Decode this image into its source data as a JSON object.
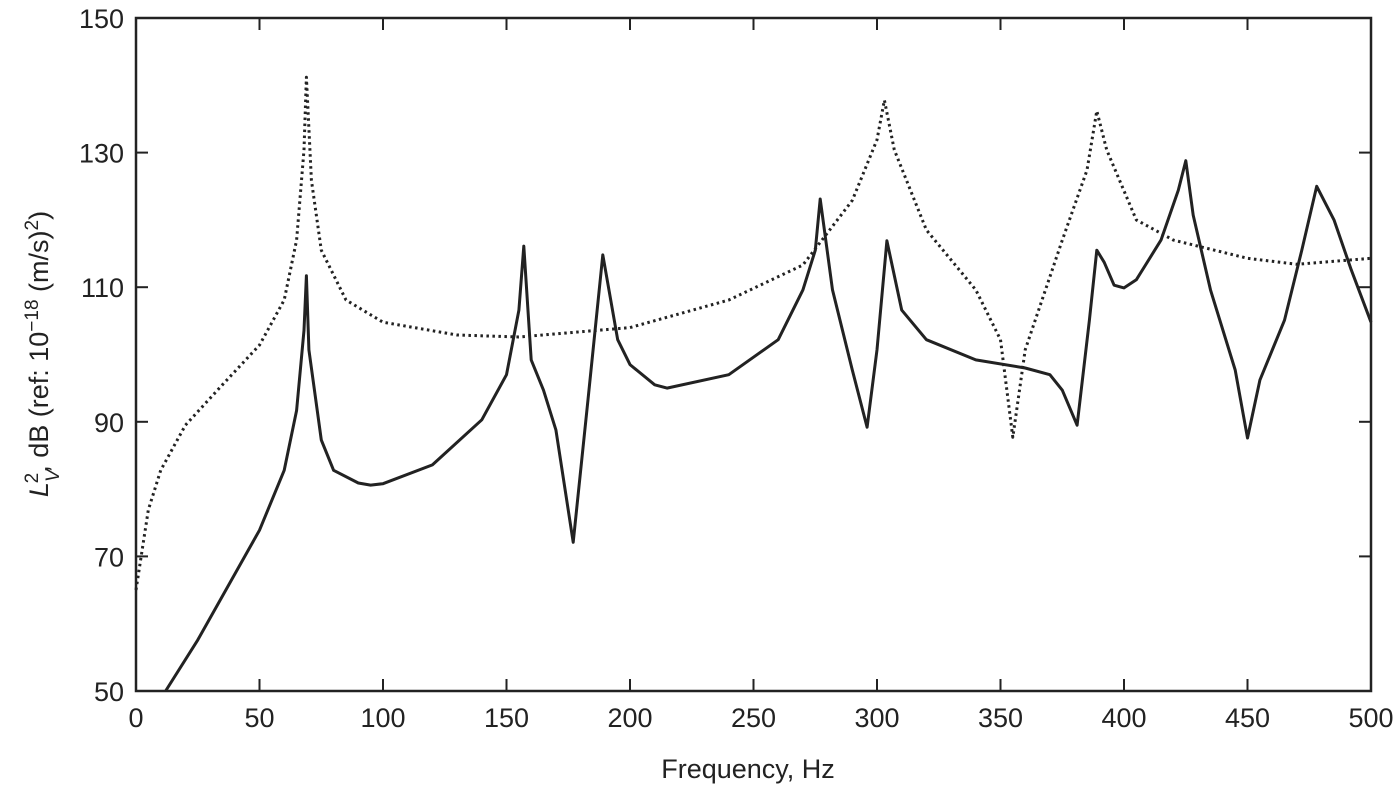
{
  "chart_data": {
    "type": "line",
    "xlabel": "Frequency, Hz",
    "ylabel": [
      "L",
      "V",
      "2",
      ", dB (ref: 10",
      "−18",
      " (m/s)",
      "2",
      ")"
    ],
    "xlim": [
      0,
      500
    ],
    "xticks": [
      0,
      50,
      100,
      150,
      200,
      250,
      300,
      350,
      400,
      450,
      500
    ],
    "ylim": [
      50,
      150
    ],
    "yticks": [
      50,
      70,
      90,
      110,
      130,
      150
    ],
    "grid": false,
    "series": [
      {
        "color": "#222222",
        "linestyle": "solid",
        "x": [
          12,
          25,
          50,
          60,
          65,
          68,
          69,
          70,
          75,
          80,
          90,
          95,
          100,
          120,
          140,
          150,
          155,
          157,
          160,
          165,
          170,
          177,
          183,
          189,
          195,
          200,
          210,
          215,
          240,
          260,
          270,
          275,
          277,
          282,
          290,
          296,
          300,
          304,
          310,
          320,
          340,
          360,
          370,
          375,
          381,
          386,
          389,
          392,
          396,
          400,
          405,
          415,
          422,
          425,
          428,
          435,
          445,
          450,
          455,
          465,
          472,
          478,
          485,
          492,
          500
        ],
        "values": [
          50,
          57.6,
          73.9,
          82.8,
          91.7,
          103.6,
          111.7,
          100.7,
          87.3,
          82.8,
          80.9,
          80.6,
          80.8,
          83.6,
          90.3,
          97,
          106.6,
          116.1,
          99.2,
          94.7,
          88.8,
          72.1,
          93.3,
          114.8,
          102.2,
          98.5,
          95.5,
          95,
          97,
          102.2,
          109.6,
          115.5,
          123.1,
          109.6,
          97.7,
          89.2,
          100.7,
          116.9,
          106.6,
          102.2,
          99.2,
          98,
          97,
          94.7,
          89.5,
          105.1,
          115.5,
          113.7,
          110.3,
          109.9,
          111.1,
          117,
          124.4,
          128.8,
          120.7,
          109.6,
          97.7,
          87.6,
          96.2,
          105.1,
          115.5,
          125,
          120,
          112.6,
          104.8
        ]
      },
      {
        "color": "#222222",
        "linestyle": "dotted",
        "x": [
          0,
          5,
          10,
          20,
          35,
          50,
          60,
          65,
          68,
          69,
          71,
          75,
          85,
          100,
          130,
          155,
          200,
          240,
          270,
          290,
          300,
          303,
          307,
          320,
          340,
          350,
          355,
          360,
          375,
          385,
          389,
          393,
          405,
          420,
          450,
          470,
          500
        ],
        "values": [
          65,
          76.9,
          82.8,
          89.5,
          95.5,
          101.4,
          108.1,
          117,
          130.4,
          141.2,
          125.9,
          115.5,
          108.1,
          104.8,
          102.9,
          102.6,
          104,
          108.1,
          113.3,
          122.9,
          131.9,
          137.8,
          130.4,
          118.5,
          109.6,
          102.2,
          87.7,
          100.7,
          117,
          127.4,
          136.2,
          130.4,
          120,
          117,
          114.3,
          113.4,
          114.3
        ]
      }
    ]
  }
}
